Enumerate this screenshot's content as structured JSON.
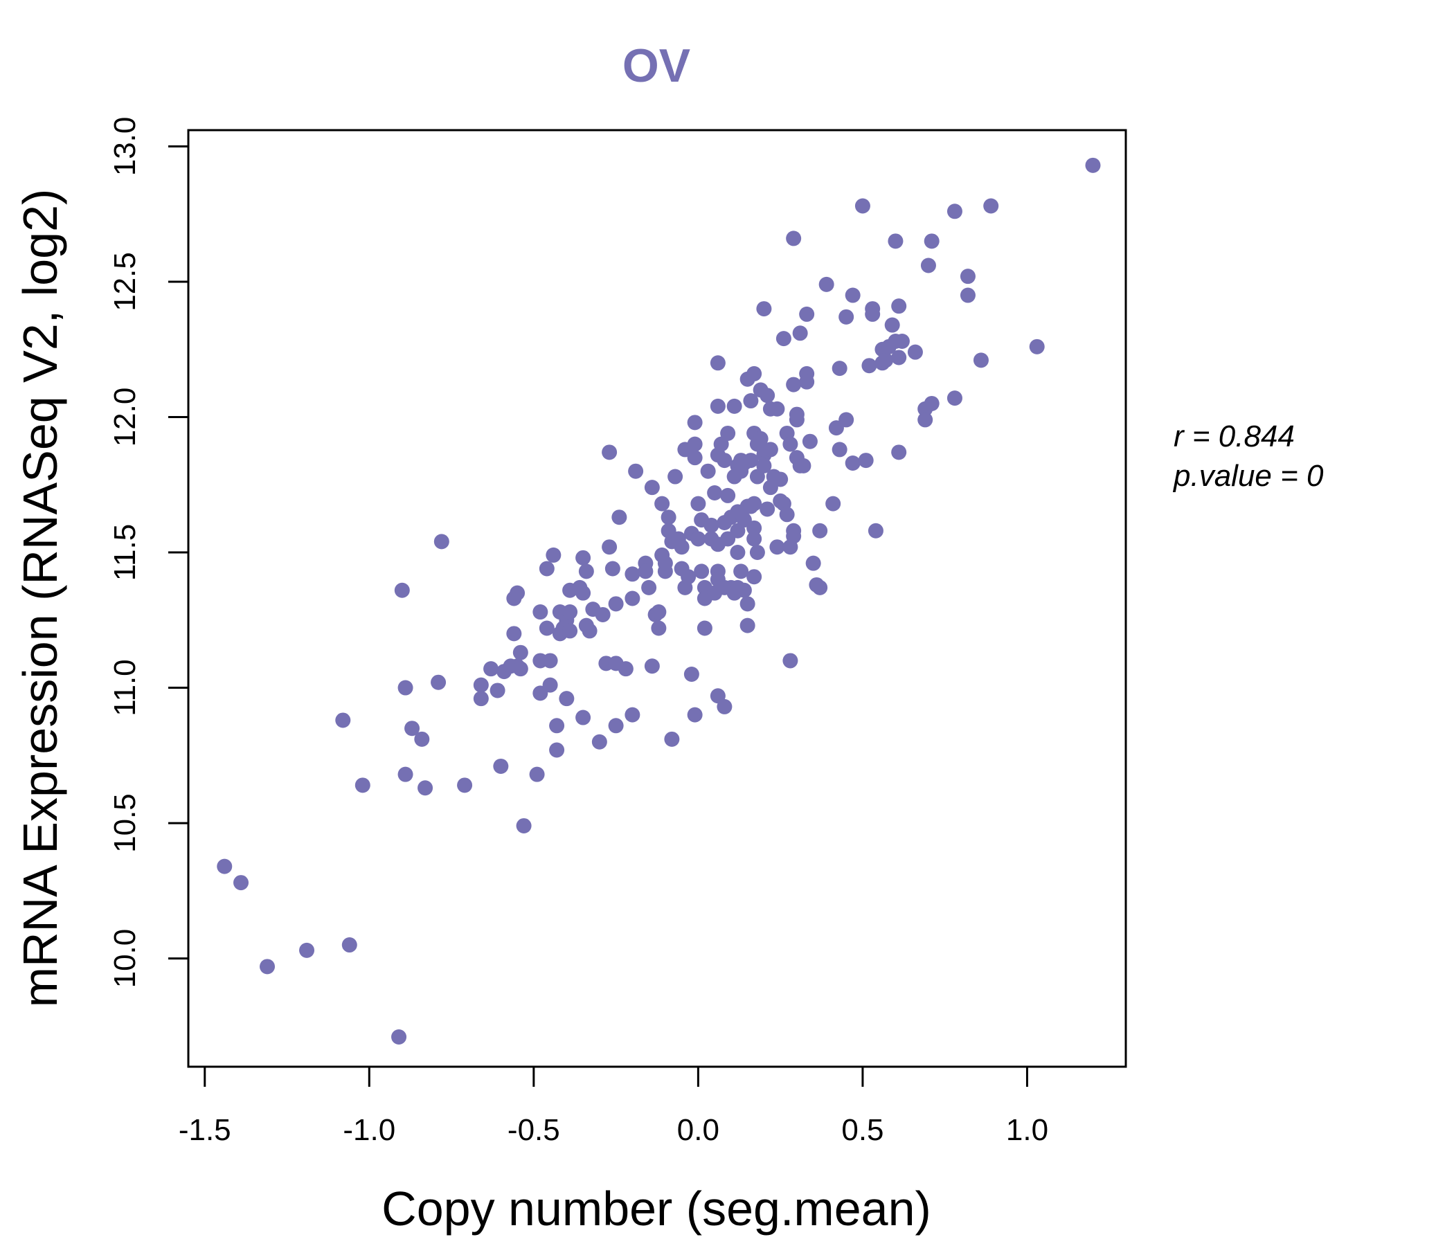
{
  "chart_data": {
    "type": "scatter",
    "title": "OV",
    "xlabel": "Copy number (seg.mean)",
    "ylabel": "mRNA Expression (RNASeq V2, log2)",
    "xlim": [
      -1.55,
      1.3
    ],
    "ylim": [
      9.6,
      13.06
    ],
    "xticks": [
      -1.5,
      -1.0,
      -0.5,
      0.0,
      0.5,
      1.0
    ],
    "xtick_labels": [
      "-1.5",
      "-1.0",
      "-0.5",
      "0.0",
      "0.5",
      "1.0"
    ],
    "yticks": [
      10.0,
      10.5,
      11.0,
      11.5,
      12.0,
      12.5,
      13.0
    ],
    "ytick_labels": [
      "10.0",
      "10.5",
      "11.0",
      "11.5",
      "12.0",
      "12.5",
      "13.0"
    ],
    "grid": false,
    "point_color": "#7570b3",
    "stats": {
      "r_label": "r = 0.844",
      "p_label": "p.value = 0"
    },
    "points": [
      [
        -1.44,
        10.34
      ],
      [
        -1.39,
        10.28
      ],
      [
        -1.31,
        9.97
      ],
      [
        -1.19,
        10.03
      ],
      [
        -1.06,
        10.05
      ],
      [
        -1.08,
        10.88
      ],
      [
        -1.02,
        10.64
      ],
      [
        -0.91,
        9.71
      ],
      [
        -0.9,
        11.36
      ],
      [
        -0.89,
        11.0
      ],
      [
        -0.89,
        10.68
      ],
      [
        -0.87,
        10.85
      ],
      [
        -0.84,
        10.81
      ],
      [
        -0.83,
        10.63
      ],
      [
        -0.79,
        11.02
      ],
      [
        -0.78,
        11.54
      ],
      [
        -0.71,
        10.64
      ],
      [
        -0.66,
        11.01
      ],
      [
        -0.66,
        10.96
      ],
      [
        -0.63,
        11.07
      ],
      [
        -0.61,
        10.99
      ],
      [
        -0.6,
        10.71
      ],
      [
        -0.59,
        11.06
      ],
      [
        -0.57,
        11.08
      ],
      [
        -0.56,
        11.2
      ],
      [
        -0.56,
        11.33
      ],
      [
        -0.55,
        11.35
      ],
      [
        -0.55,
        11.08
      ],
      [
        -0.54,
        11.13
      ],
      [
        -0.54,
        11.07
      ],
      [
        -0.53,
        10.49
      ],
      [
        -0.49,
        10.68
      ],
      [
        -0.48,
        11.1
      ],
      [
        -0.48,
        10.98
      ],
      [
        -0.48,
        11.28
      ],
      [
        -0.46,
        11.44
      ],
      [
        -0.46,
        11.22
      ],
      [
        -0.45,
        11.01
      ],
      [
        -0.45,
        11.1
      ],
      [
        -0.44,
        11.49
      ],
      [
        -0.43,
        10.77
      ],
      [
        -0.43,
        10.86
      ],
      [
        -0.42,
        11.28
      ],
      [
        -0.42,
        11.2
      ],
      [
        -0.41,
        11.22
      ],
      [
        -0.4,
        11.25
      ],
      [
        -0.4,
        10.96
      ],
      [
        -0.39,
        11.28
      ],
      [
        -0.39,
        11.21
      ],
      [
        -0.39,
        11.36
      ],
      [
        -0.36,
        11.37
      ],
      [
        -0.35,
        11.35
      ],
      [
        -0.35,
        10.89
      ],
      [
        -0.35,
        11.48
      ],
      [
        -0.34,
        11.43
      ],
      [
        -0.34,
        11.23
      ],
      [
        -0.33,
        11.21
      ],
      [
        -0.32,
        11.29
      ],
      [
        -0.3,
        10.8
      ],
      [
        -0.29,
        11.27
      ],
      [
        -0.28,
        11.09
      ],
      [
        -0.27,
        11.87
      ],
      [
        -0.27,
        11.52
      ],
      [
        -0.26,
        11.44
      ],
      [
        -0.25,
        11.31
      ],
      [
        -0.25,
        11.09
      ],
      [
        -0.25,
        10.86
      ],
      [
        -0.24,
        11.63
      ],
      [
        -0.22,
        11.07
      ],
      [
        -0.2,
        11.42
      ],
      [
        -0.2,
        11.33
      ],
      [
        -0.2,
        10.9
      ],
      [
        -0.19,
        11.8
      ],
      [
        -0.16,
        11.46
      ],
      [
        -0.16,
        11.43
      ],
      [
        -0.15,
        11.37
      ],
      [
        -0.14,
        11.74
      ],
      [
        -0.14,
        11.08
      ],
      [
        -0.13,
        11.27
      ],
      [
        -0.12,
        11.28
      ],
      [
        -0.12,
        11.22
      ],
      [
        -0.11,
        11.68
      ],
      [
        -0.11,
        11.49
      ],
      [
        -0.1,
        11.43
      ],
      [
        -0.1,
        11.46
      ],
      [
        -0.09,
        11.63
      ],
      [
        -0.09,
        11.58
      ],
      [
        -0.08,
        11.54
      ],
      [
        -0.08,
        10.81
      ],
      [
        -0.07,
        11.78
      ],
      [
        -0.06,
        11.55
      ],
      [
        -0.05,
        11.52
      ],
      [
        -0.05,
        11.44
      ],
      [
        -0.04,
        11.88
      ],
      [
        -0.04,
        11.37
      ],
      [
        -0.03,
        11.41
      ],
      [
        -0.02,
        11.57
      ],
      [
        -0.02,
        11.05
      ],
      [
        -0.01,
        10.9
      ],
      [
        -0.01,
        11.98
      ],
      [
        -0.01,
        11.9
      ],
      [
        -0.01,
        11.85
      ],
      [
        0.0,
        11.68
      ],
      [
        0.0,
        11.55
      ],
      [
        0.01,
        11.43
      ],
      [
        0.01,
        11.62
      ],
      [
        0.02,
        11.37
      ],
      [
        0.02,
        11.33
      ],
      [
        0.02,
        11.22
      ],
      [
        0.03,
        11.8
      ],
      [
        0.04,
        11.6
      ],
      [
        0.04,
        11.55
      ],
      [
        0.05,
        11.35
      ],
      [
        0.05,
        11.72
      ],
      [
        0.06,
        12.2
      ],
      [
        0.06,
        12.04
      ],
      [
        0.06,
        11.86
      ],
      [
        0.06,
        11.53
      ],
      [
        0.06,
        11.43
      ],
      [
        0.06,
        11.4
      ],
      [
        0.06,
        10.97
      ],
      [
        0.07,
        11.9
      ],
      [
        0.08,
        11.84
      ],
      [
        0.08,
        11.61
      ],
      [
        0.08,
        11.37
      ],
      [
        0.08,
        10.93
      ],
      [
        0.09,
        11.94
      ],
      [
        0.09,
        11.71
      ],
      [
        0.09,
        11.55
      ],
      [
        0.1,
        11.63
      ],
      [
        0.1,
        11.37
      ],
      [
        0.11,
        12.04
      ],
      [
        0.11,
        11.78
      ],
      [
        0.11,
        11.35
      ],
      [
        0.12,
        11.82
      ],
      [
        0.12,
        11.65
      ],
      [
        0.12,
        11.58
      ],
      [
        0.12,
        11.5
      ],
      [
        0.12,
        11.37
      ],
      [
        0.13,
        11.84
      ],
      [
        0.13,
        11.8
      ],
      [
        0.13,
        11.43
      ],
      [
        0.14,
        11.83
      ],
      [
        0.14,
        11.62
      ],
      [
        0.14,
        11.36
      ],
      [
        0.15,
        12.14
      ],
      [
        0.15,
        11.67
      ],
      [
        0.15,
        11.31
      ],
      [
        0.15,
        11.23
      ],
      [
        0.16,
        12.06
      ],
      [
        0.16,
        11.84
      ],
      [
        0.16,
        11.67
      ],
      [
        0.17,
        11.59
      ],
      [
        0.17,
        11.68
      ],
      [
        0.17,
        11.41
      ],
      [
        0.17,
        11.55
      ],
      [
        0.17,
        12.16
      ],
      [
        0.17,
        11.94
      ],
      [
        0.18,
        11.9
      ],
      [
        0.18,
        11.78
      ],
      [
        0.18,
        11.5
      ],
      [
        0.19,
        12.1
      ],
      [
        0.19,
        11.92
      ],
      [
        0.2,
        11.86
      ],
      [
        0.2,
        11.82
      ],
      [
        0.2,
        12.4
      ],
      [
        0.2,
        11.88
      ],
      [
        0.21,
        12.08
      ],
      [
        0.21,
        11.66
      ],
      [
        0.22,
        12.03
      ],
      [
        0.22,
        11.74
      ],
      [
        0.22,
        11.88
      ],
      [
        0.23,
        11.78
      ],
      [
        0.24,
        11.52
      ],
      [
        0.24,
        12.03
      ],
      [
        0.25,
        11.69
      ],
      [
        0.25,
        11.77
      ],
      [
        0.26,
        11.68
      ],
      [
        0.26,
        12.29
      ],
      [
        0.27,
        11.94
      ],
      [
        0.27,
        11.64
      ],
      [
        0.28,
        11.9
      ],
      [
        0.28,
        11.52
      ],
      [
        0.28,
        11.1
      ],
      [
        0.29,
        12.66
      ],
      [
        0.29,
        12.12
      ],
      [
        0.29,
        11.58
      ],
      [
        0.29,
        11.56
      ],
      [
        0.3,
        11.99
      ],
      [
        0.3,
        12.01
      ],
      [
        0.3,
        11.85
      ],
      [
        0.31,
        12.31
      ],
      [
        0.31,
        11.82
      ],
      [
        0.32,
        11.82
      ],
      [
        0.33,
        12.38
      ],
      [
        0.33,
        12.16
      ],
      [
        0.33,
        12.13
      ],
      [
        0.34,
        11.91
      ],
      [
        0.35,
        11.46
      ],
      [
        0.36,
        11.38
      ],
      [
        0.37,
        11.58
      ],
      [
        0.37,
        11.37
      ],
      [
        0.39,
        12.49
      ],
      [
        0.41,
        11.68
      ],
      [
        0.42,
        11.96
      ],
      [
        0.43,
        11.88
      ],
      [
        0.43,
        12.18
      ],
      [
        0.45,
        12.37
      ],
      [
        0.45,
        11.99
      ],
      [
        0.47,
        12.45
      ],
      [
        0.47,
        11.83
      ],
      [
        0.5,
        12.78
      ],
      [
        0.51,
        11.84
      ],
      [
        0.52,
        12.19
      ],
      [
        0.53,
        12.4
      ],
      [
        0.53,
        12.38
      ],
      [
        0.54,
        11.58
      ],
      [
        0.56,
        12.2
      ],
      [
        0.56,
        12.25
      ],
      [
        0.57,
        12.21
      ],
      [
        0.58,
        12.26
      ],
      [
        0.59,
        12.34
      ],
      [
        0.6,
        12.28
      ],
      [
        0.6,
        12.65
      ],
      [
        0.61,
        12.41
      ],
      [
        0.61,
        12.22
      ],
      [
        0.61,
        11.87
      ],
      [
        0.62,
        12.28
      ],
      [
        0.66,
        12.24
      ],
      [
        0.69,
        12.03
      ],
      [
        0.69,
        11.99
      ],
      [
        0.7,
        12.56
      ],
      [
        0.71,
        12.65
      ],
      [
        0.71,
        12.05
      ],
      [
        0.78,
        12.76
      ],
      [
        0.78,
        12.07
      ],
      [
        0.82,
        12.45
      ],
      [
        0.82,
        12.52
      ],
      [
        0.86,
        12.21
      ],
      [
        0.89,
        12.78
      ],
      [
        1.03,
        12.26
      ],
      [
        1.2,
        12.93
      ]
    ]
  }
}
